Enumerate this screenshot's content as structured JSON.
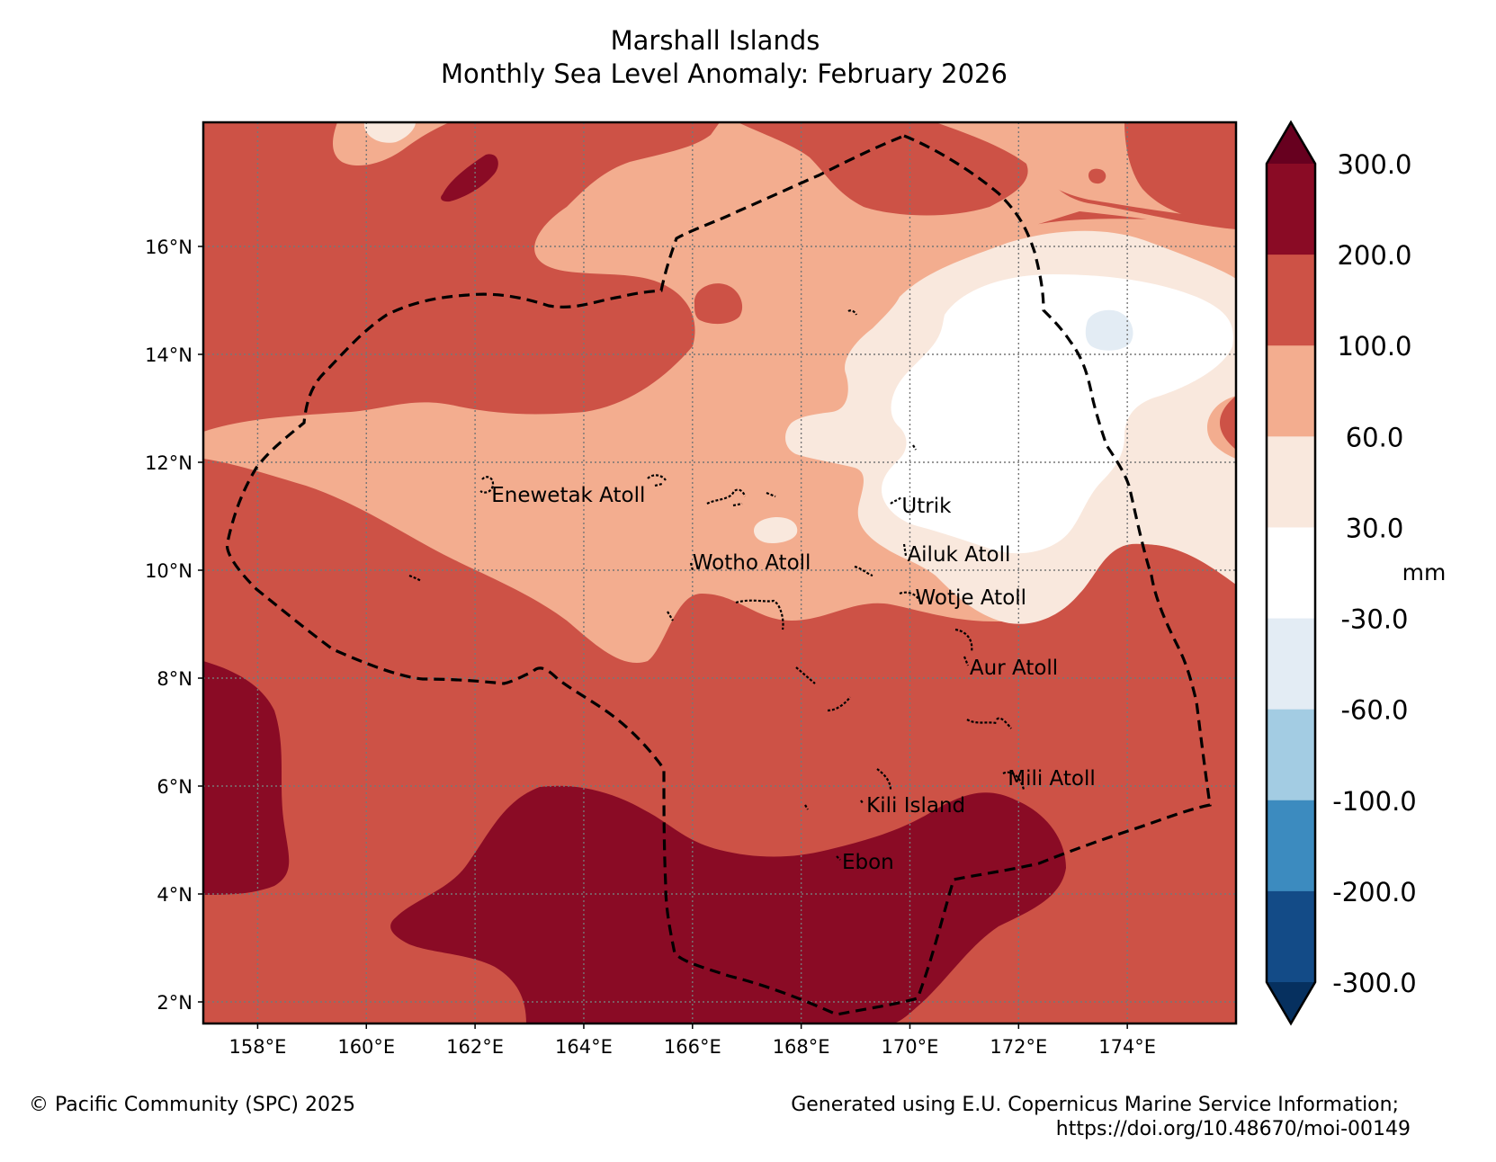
{
  "title": {
    "line1": "Marshall Islands",
    "line2": "Monthly Sea Level Anomaly: February 2026"
  },
  "map": {
    "lon_range": [
      157.0,
      176.0
    ],
    "lat_range": [
      1.6,
      18.3
    ],
    "lon_ticks": [
      {
        "value": 158,
        "label": "158°E"
      },
      {
        "value": 160,
        "label": "160°E"
      },
      {
        "value": 162,
        "label": "162°E"
      },
      {
        "value": 164,
        "label": "164°E"
      },
      {
        "value": 166,
        "label": "166°E"
      },
      {
        "value": 168,
        "label": "168°E"
      },
      {
        "value": 170,
        "label": "170°E"
      },
      {
        "value": 172,
        "label": "172°E"
      },
      {
        "value": 174,
        "label": "174°E"
      }
    ],
    "lat_ticks": [
      {
        "value": 2,
        "label": "2°N"
      },
      {
        "value": 4,
        "label": "4°N"
      },
      {
        "value": 6,
        "label": "6°N"
      },
      {
        "value": 8,
        "label": "8°N"
      },
      {
        "value": 10,
        "label": "10°N"
      },
      {
        "value": 12,
        "label": "12°N"
      },
      {
        "value": 14,
        "label": "14°N"
      },
      {
        "value": 16,
        "label": "16°N"
      }
    ],
    "gridlines": true,
    "places": [
      {
        "name": "Enewetak Atoll",
        "lon": 162.3,
        "lat": 11.4
      },
      {
        "name": "Utrik",
        "lon": 169.85,
        "lat": 11.2
      },
      {
        "name": "Wotho Atoll",
        "lon": 166.0,
        "lat": 10.15
      },
      {
        "name": "Ailuk Atoll",
        "lon": 169.95,
        "lat": 10.3
      },
      {
        "name": "Wotje Atoll",
        "lon": 170.1,
        "lat": 9.5
      },
      {
        "name": "Aur Atoll",
        "lon": 171.1,
        "lat": 8.2
      },
      {
        "name": "Mili Atoll",
        "lon": 171.8,
        "lat": 6.15
      },
      {
        "name": "Kili Island",
        "lon": 169.2,
        "lat": 5.65
      },
      {
        "name": "Ebon",
        "lon": 168.75,
        "lat": 4.6
      }
    ]
  },
  "colorbar": {
    "unit": "mm",
    "labels": [
      "300.0",
      "200.0",
      "100.0",
      "60.0",
      "30.0",
      "-30.0",
      "-60.0",
      "-100.0",
      "-200.0",
      "-300.0"
    ],
    "bins": [
      {
        "range": "200 to 300",
        "color": "#8a0b25"
      },
      {
        "range": "100 to 200",
        "color": "#cd5246"
      },
      {
        "range": "60 to 100",
        "color": "#f3ad8f"
      },
      {
        "range": "30 to 60",
        "color": "#f9e8dd"
      },
      {
        "range": "-30 to 30",
        "color": "#ffffff"
      },
      {
        "range": "-60 to -30",
        "color": "#e3ecf4"
      },
      {
        "range": "-100 to -60",
        "color": "#a3cce3"
      },
      {
        "range": "-200 to -100",
        "color": "#3c8bbf"
      },
      {
        "range": "-300 to -200",
        "color": "#134b87"
      }
    ],
    "over_color": "#67001f",
    "under_color": "#06305f"
  },
  "footer": {
    "left": "© Pacific Community (SPC) 2025",
    "right_line1": "Generated using E.U. Copernicus Marine Service Information;",
    "right_line2": "https://doi.org/10.48670/moi-00149"
  }
}
